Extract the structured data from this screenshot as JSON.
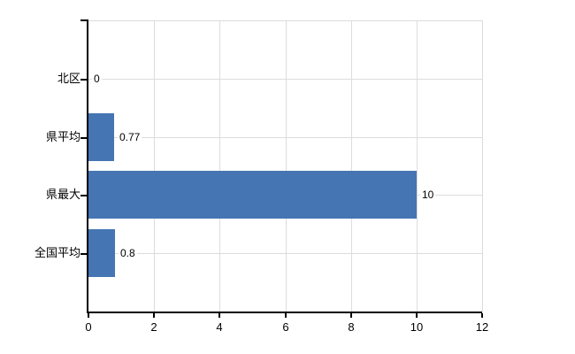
{
  "chart_data": {
    "type": "bar",
    "orientation": "horizontal",
    "categories": [
      "北区",
      "県平均",
      "県最大",
      "全国平均"
    ],
    "values": [
      0,
      0.77,
      10,
      0.8
    ],
    "value_labels": [
      "0",
      "0.77",
      "10",
      "0.8"
    ],
    "x_ticks": [
      0,
      2,
      4,
      6,
      8,
      10,
      12
    ],
    "x_tick_labels": [
      "0",
      "2",
      "4",
      "6",
      "8",
      "10",
      "12"
    ],
    "xlim": [
      0,
      12
    ],
    "grid": true,
    "legend": false,
    "colors": {
      "bar": "#4575B2",
      "gridline": "#dcdcdc",
      "axis": "#000000",
      "text": "#000000",
      "background": "#ffffff"
    }
  }
}
